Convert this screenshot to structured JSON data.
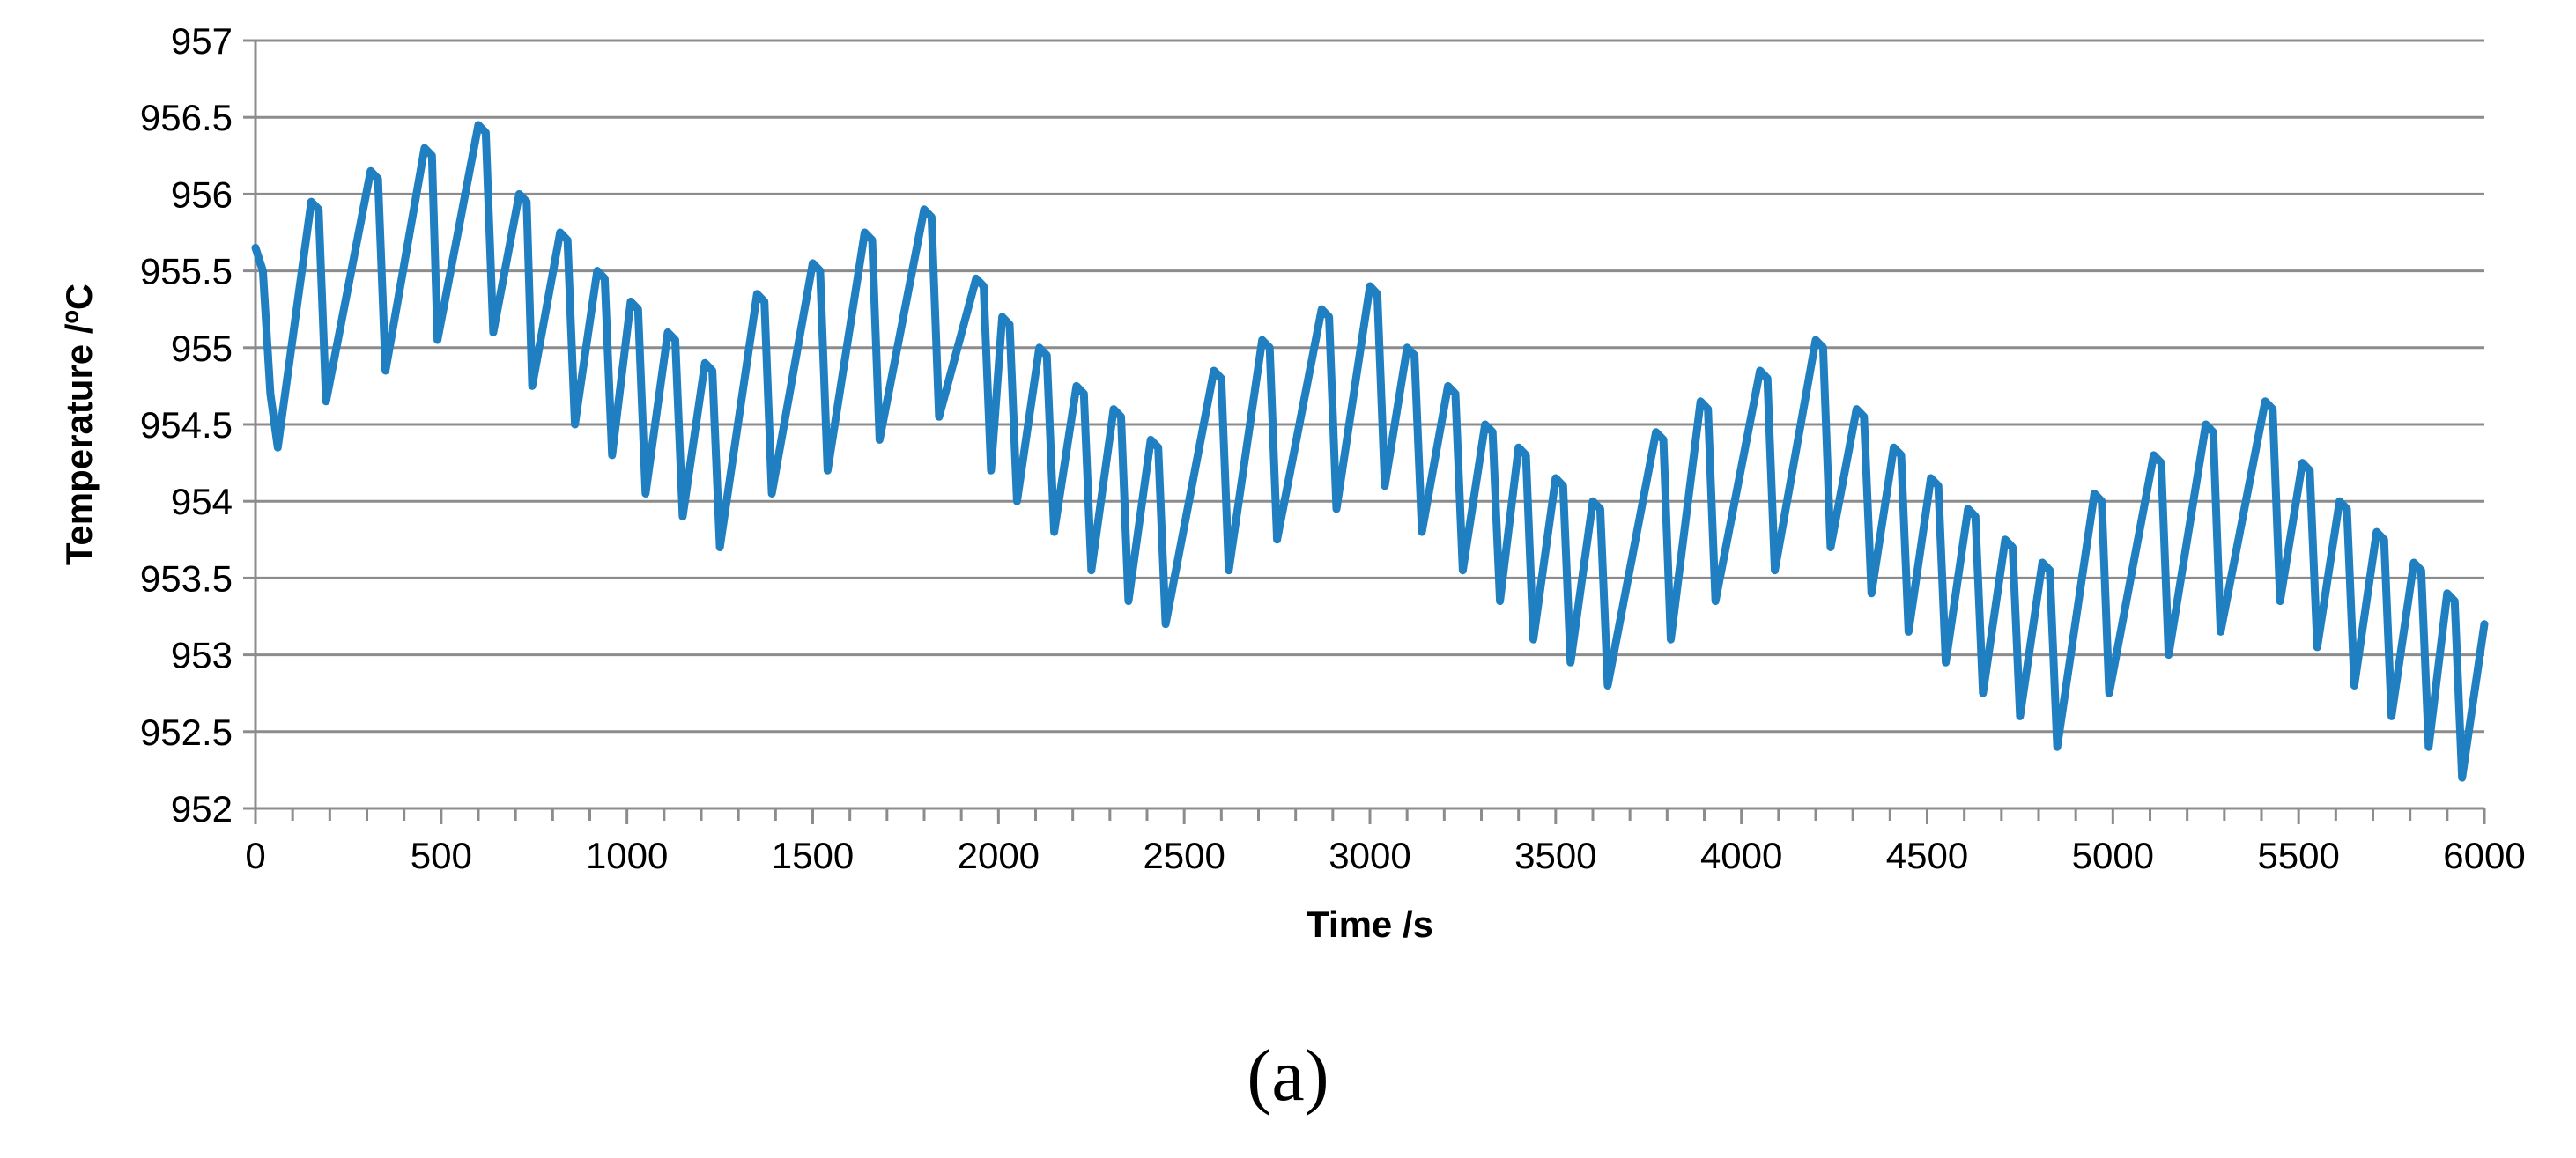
{
  "chart_data": {
    "type": "line",
    "title": "",
    "xlabel": "Time /s",
    "ylabel": "Temperature /ºC",
    "xlim": [
      0,
      6000
    ],
    "ylim": [
      952,
      957
    ],
    "grid": true,
    "legend": "none",
    "x_ticks": [
      0,
      500,
      1000,
      1500,
      2000,
      2500,
      3000,
      3500,
      4000,
      4500,
      5000,
      5500,
      6000
    ],
    "x_tick_labels": [
      "0",
      "500",
      "1000",
      "1500",
      "2000",
      "2500",
      "3000",
      "3500",
      "4000",
      "4500",
      "5000",
      "5500",
      "6000"
    ],
    "y_ticks": [
      952,
      952.5,
      953,
      953.5,
      954,
      954.5,
      955,
      955.5,
      956,
      956.5,
      957
    ],
    "y_tick_labels": [
      "952",
      "952.5",
      "953",
      "953.5",
      "954",
      "954.5",
      "955",
      "955.5",
      "956",
      "956.5",
      "957"
    ],
    "series": [
      {
        "name": "Temperature",
        "color": "#1f7fc1",
        "points": [
          [
            0,
            955.65
          ],
          [
            20,
            955.5
          ],
          [
            40,
            954.7
          ],
          [
            60,
            954.35
          ],
          [
            150,
            955.95
          ],
          [
            170,
            955.9
          ],
          [
            190,
            954.65
          ],
          [
            310,
            956.15
          ],
          [
            330,
            956.1
          ],
          [
            350,
            954.85
          ],
          [
            455,
            956.3
          ],
          [
            475,
            956.25
          ],
          [
            490,
            955.05
          ],
          [
            600,
            956.45
          ],
          [
            620,
            956.4
          ],
          [
            640,
            955.1
          ],
          [
            710,
            956.0
          ],
          [
            730,
            955.95
          ],
          [
            745,
            954.75
          ],
          [
            820,
            955.75
          ],
          [
            840,
            955.7
          ],
          [
            860,
            954.5
          ],
          [
            920,
            955.5
          ],
          [
            940,
            955.45
          ],
          [
            960,
            954.3
          ],
          [
            1010,
            955.3
          ],
          [
            1030,
            955.25
          ],
          [
            1050,
            954.05
          ],
          [
            1110,
            955.1
          ],
          [
            1130,
            955.05
          ],
          [
            1150,
            953.9
          ],
          [
            1210,
            954.9
          ],
          [
            1230,
            954.85
          ],
          [
            1250,
            953.7
          ],
          [
            1350,
            955.35
          ],
          [
            1370,
            955.3
          ],
          [
            1390,
            954.05
          ],
          [
            1500,
            955.55
          ],
          [
            1520,
            955.5
          ],
          [
            1540,
            954.2
          ],
          [
            1640,
            955.75
          ],
          [
            1660,
            955.7
          ],
          [
            1680,
            954.4
          ],
          [
            1800,
            955.9
          ],
          [
            1820,
            955.85
          ],
          [
            1840,
            954.55
          ],
          [
            1940,
            955.45
          ],
          [
            1960,
            955.4
          ],
          [
            1980,
            954.2
          ],
          [
            2010,
            955.2
          ],
          [
            2030,
            955.15
          ],
          [
            2050,
            954.0
          ],
          [
            2110,
            955.0
          ],
          [
            2130,
            954.95
          ],
          [
            2150,
            953.8
          ],
          [
            2210,
            954.75
          ],
          [
            2230,
            954.7
          ],
          [
            2250,
            953.55
          ],
          [
            2310,
            954.6
          ],
          [
            2330,
            954.55
          ],
          [
            2350,
            953.35
          ],
          [
            2410,
            954.4
          ],
          [
            2430,
            954.35
          ],
          [
            2450,
            953.2
          ],
          [
            2580,
            954.85
          ],
          [
            2600,
            954.8
          ],
          [
            2620,
            953.55
          ],
          [
            2710,
            955.05
          ],
          [
            2730,
            955.0
          ],
          [
            2750,
            953.75
          ],
          [
            2870,
            955.25
          ],
          [
            2890,
            955.2
          ],
          [
            2910,
            953.95
          ],
          [
            3000,
            955.4
          ],
          [
            3020,
            955.35
          ],
          [
            3040,
            954.1
          ],
          [
            3100,
            955.0
          ],
          [
            3120,
            954.95
          ],
          [
            3140,
            953.8
          ],
          [
            3210,
            954.75
          ],
          [
            3230,
            954.7
          ],
          [
            3250,
            953.55
          ],
          [
            3310,
            954.5
          ],
          [
            3330,
            954.45
          ],
          [
            3350,
            953.35
          ],
          [
            3400,
            954.35
          ],
          [
            3420,
            954.3
          ],
          [
            3440,
            953.1
          ],
          [
            3500,
            954.15
          ],
          [
            3520,
            954.1
          ],
          [
            3540,
            952.95
          ],
          [
            3600,
            954.0
          ],
          [
            3620,
            953.95
          ],
          [
            3640,
            952.8
          ],
          [
            3770,
            954.45
          ],
          [
            3790,
            954.4
          ],
          [
            3810,
            953.1
          ],
          [
            3890,
            954.65
          ],
          [
            3910,
            954.6
          ],
          [
            3930,
            953.35
          ],
          [
            4050,
            954.85
          ],
          [
            4070,
            954.8
          ],
          [
            4090,
            953.55
          ],
          [
            4200,
            955.05
          ],
          [
            4220,
            955.0
          ],
          [
            4240,
            953.7
          ],
          [
            4310,
            954.6
          ],
          [
            4330,
            954.55
          ],
          [
            4350,
            953.4
          ],
          [
            4410,
            954.35
          ],
          [
            4430,
            954.3
          ],
          [
            4450,
            953.15
          ],
          [
            4510,
            954.15
          ],
          [
            4530,
            954.1
          ],
          [
            4550,
            952.95
          ],
          [
            4610,
            953.95
          ],
          [
            4630,
            953.9
          ],
          [
            4650,
            952.75
          ],
          [
            4710,
            953.75
          ],
          [
            4730,
            953.7
          ],
          [
            4750,
            952.6
          ],
          [
            4810,
            953.6
          ],
          [
            4830,
            953.55
          ],
          [
            4850,
            952.4
          ],
          [
            4950,
            954.05
          ],
          [
            4970,
            954.0
          ],
          [
            4990,
            952.75
          ],
          [
            5110,
            954.3
          ],
          [
            5130,
            954.25
          ],
          [
            5150,
            953.0
          ],
          [
            5250,
            954.5
          ],
          [
            5270,
            954.45
          ],
          [
            5290,
            953.15
          ],
          [
            5410,
            954.65
          ],
          [
            5430,
            954.6
          ],
          [
            5450,
            953.35
          ],
          [
            5510,
            954.25
          ],
          [
            5530,
            954.2
          ],
          [
            5550,
            953.05
          ],
          [
            5610,
            954.0
          ],
          [
            5630,
            953.95
          ],
          [
            5650,
            952.8
          ],
          [
            5710,
            953.8
          ],
          [
            5730,
            953.75
          ],
          [
            5750,
            952.6
          ],
          [
            5810,
            953.6
          ],
          [
            5830,
            953.55
          ],
          [
            5850,
            952.4
          ],
          [
            5900,
            953.4
          ],
          [
            5920,
            953.35
          ],
          [
            5940,
            952.2
          ],
          [
            6000,
            953.2
          ]
        ]
      }
    ]
  },
  "figure": {
    "panel_label": "(a)"
  }
}
